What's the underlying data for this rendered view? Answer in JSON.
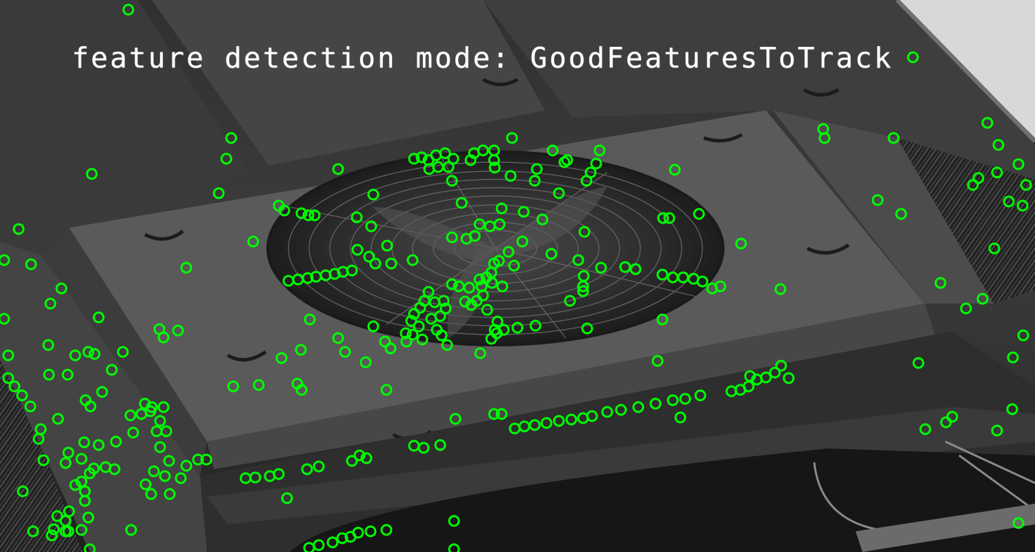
{
  "overlay": {
    "label": "feature detection mode: GoodFeaturesToTrack",
    "marker_color": "#00ff00",
    "marker_shape": "circle-outline"
  },
  "scene": {
    "subject": "industrial fan grille on metal roof panel (grayscale photo)"
  }
}
